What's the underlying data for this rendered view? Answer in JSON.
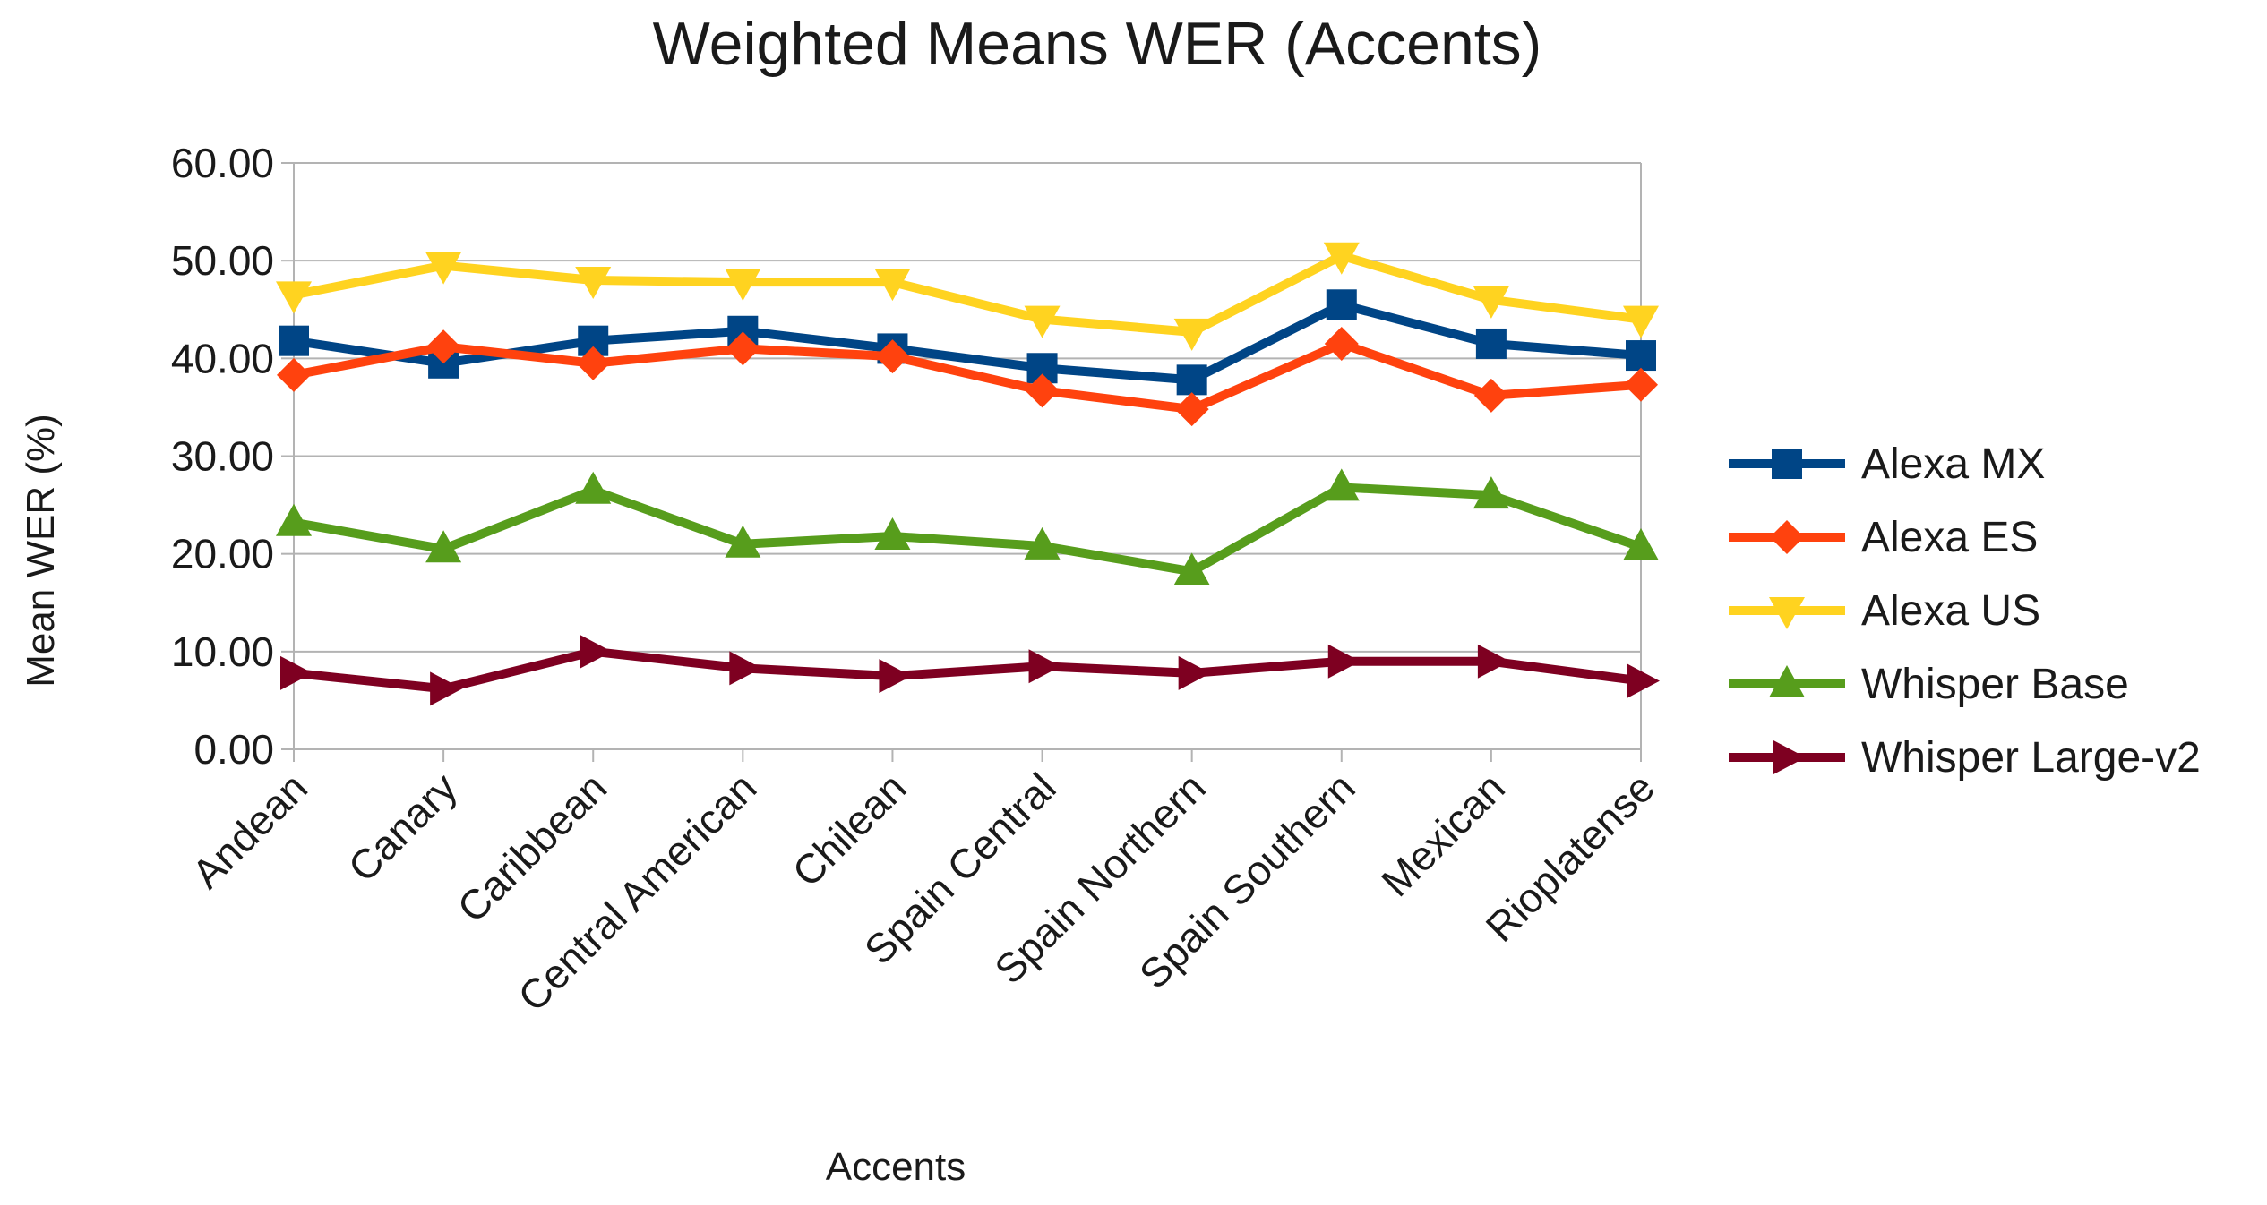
{
  "chart_data": {
    "type": "line",
    "title": "Weighted Means WER (Accents)",
    "xlabel": "Accents",
    "ylabel": "Mean WER (%)",
    "ylim": [
      0,
      60
    ],
    "yticks": [
      "0.00",
      "10.00",
      "20.00",
      "30.00",
      "40.00",
      "50.00",
      "60.00"
    ],
    "grid": true,
    "legend_position": "right",
    "categories": [
      "Andean",
      "Canary",
      "Caribbean",
      "Central American",
      "Chilean",
      "Spain Central",
      "Spain Northern",
      "Spain Southern",
      "Mexican",
      "Rioplatense"
    ],
    "series": [
      {
        "name": "Alexa MX",
        "color": "#004586",
        "marker": "square",
        "values": [
          41.8,
          39.5,
          41.8,
          42.8,
          41.0,
          39.0,
          37.8,
          45.5,
          41.5,
          40.3
        ]
      },
      {
        "name": "Alexa ES",
        "color": "#ff420e",
        "marker": "diamond",
        "values": [
          38.3,
          41.2,
          39.5,
          41.0,
          40.2,
          36.7,
          34.8,
          41.5,
          36.2,
          37.3
        ]
      },
      {
        "name": "Alexa US",
        "color": "#ffd320",
        "marker": "triangle-down",
        "values": [
          46.5,
          49.5,
          48.0,
          47.8,
          47.8,
          44.0,
          42.7,
          50.5,
          46.0,
          44.0
        ]
      },
      {
        "name": "Whisper Base",
        "color": "#579d1c",
        "marker": "triangle-up",
        "values": [
          23.2,
          20.5,
          26.5,
          21.0,
          21.8,
          20.8,
          18.2,
          26.8,
          26.0,
          20.7
        ]
      },
      {
        "name": "Whisper Large-v2",
        "color": "#7e0021",
        "marker": "triangle-right",
        "values": [
          7.8,
          6.2,
          10.0,
          8.3,
          7.5,
          8.5,
          7.8,
          9.0,
          9.0,
          7.0
        ]
      }
    ]
  }
}
